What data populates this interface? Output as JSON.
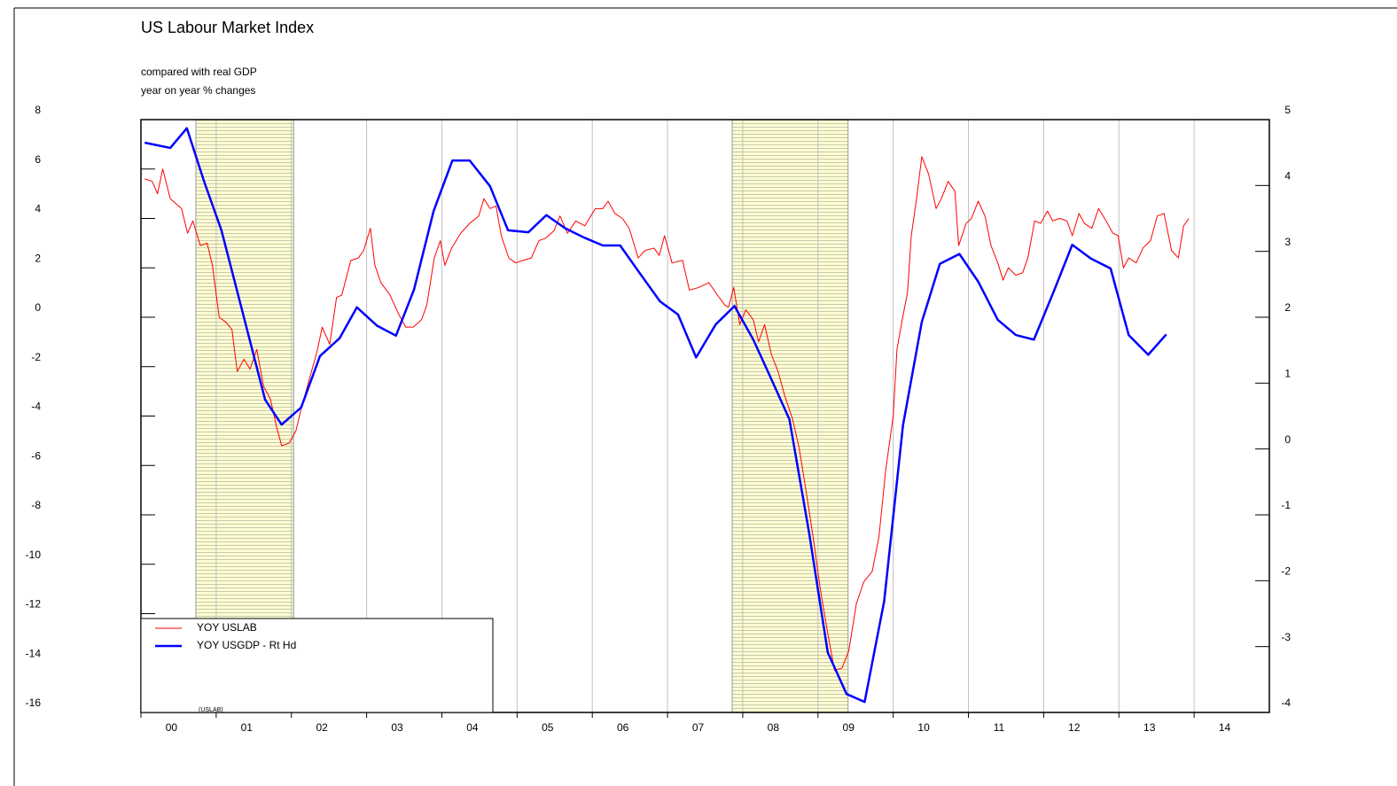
{
  "chart_data": {
    "type": "line",
    "title": "US Labour Market Index",
    "subtitle": [
      "compared with real GDP",
      "year on year % changes"
    ],
    "annotation": "(USLAB)",
    "xlim": [
      2000,
      2015
    ],
    "xticks": [
      {
        "value": 2000,
        "label": "00"
      },
      {
        "value": 2001,
        "label": "01"
      },
      {
        "value": 2002,
        "label": "02"
      },
      {
        "value": 2003,
        "label": "03"
      },
      {
        "value": 2004,
        "label": "04"
      },
      {
        "value": 2005,
        "label": "05"
      },
      {
        "value": 2006,
        "label": "06"
      },
      {
        "value": 2007,
        "label": "07"
      },
      {
        "value": 2008,
        "label": "08"
      },
      {
        "value": 2009,
        "label": "09"
      },
      {
        "value": 2010,
        "label": "10"
      },
      {
        "value": 2011,
        "label": "11"
      },
      {
        "value": 2012,
        "label": "12"
      },
      {
        "value": 2013,
        "label": "13"
      },
      {
        "value": 2014,
        "label": "14"
      }
    ],
    "ylim": [
      -16,
      8
    ],
    "yticks": [
      8,
      6,
      4,
      2,
      0,
      -2,
      -4,
      -6,
      -8,
      -10,
      -12,
      -14,
      -16
    ],
    "y2lim": [
      -4,
      5
    ],
    "y2ticks": [
      5,
      4,
      3,
      2,
      1,
      0,
      -1,
      -2,
      -3,
      -4
    ],
    "grid": true,
    "legend": "bottom-left",
    "shaded_regions": [
      [
        2000.73,
        2002.03
      ],
      [
        2007.86,
        2009.4
      ]
    ],
    "series": [
      {
        "name": "YOY USLAB",
        "color": "#ff0000",
        "axis": "y",
        "x": [
          2000.05,
          2000.15,
          2000.22,
          2000.29,
          2000.39,
          2000.54,
          2000.62,
          2000.69,
          2000.79,
          2000.88,
          2000.95,
          2001.04,
          2001.13,
          2001.21,
          2001.28,
          2001.37,
          2001.45,
          2001.54,
          2001.63,
          2001.72,
          2001.8,
          2001.87,
          2001.97,
          2002.06,
          2002.13,
          2002.23,
          2002.34,
          2002.41,
          2002.51,
          2002.6,
          2002.67,
          2002.79,
          2002.89,
          2002.96,
          2003.05,
          2003.11,
          2003.19,
          2003.31,
          2003.43,
          2003.52,
          2003.62,
          2003.73,
          2003.8,
          2003.9,
          2003.98,
          2004.04,
          2004.13,
          2004.25,
          2004.37,
          2004.49,
          2004.56,
          2004.64,
          2004.72,
          2004.79,
          2004.89,
          2004.98,
          2005.08,
          2005.19,
          2005.29,
          2005.38,
          2005.49,
          2005.57,
          2005.67,
          2005.78,
          2005.9,
          2006.04,
          2006.14,
          2006.21,
          2006.3,
          2006.4,
          2006.49,
          2006.61,
          2006.7,
          2006.82,
          2006.89,
          2006.96,
          2007.06,
          2007.2,
          2007.29,
          2007.41,
          2007.55,
          2007.64,
          2007.76,
          2007.81,
          2007.88,
          2007.96,
          2008.04,
          2008.14,
          2008.21,
          2008.29,
          2008.38,
          2008.47,
          2008.56,
          2008.66,
          2008.75,
          2008.85,
          2008.94,
          2009.03,
          2009.13,
          2009.22,
          2009.32,
          2009.41,
          2009.51,
          2009.61,
          2009.72,
          2009.81,
          2009.9,
          2010.0,
          2010.05,
          2010.12,
          2010.19,
          2010.24,
          2010.31,
          2010.38,
          2010.47,
          2010.57,
          2010.64,
          2010.73,
          2010.82,
          2010.87,
          2010.97,
          2011.04,
          2011.13,
          2011.22,
          2011.3,
          2011.39,
          2011.46,
          2011.53,
          2011.63,
          2011.72,
          2011.79,
          2011.88,
          2011.96,
          2012.05,
          2012.12,
          2012.21,
          2012.31,
          2012.38,
          2012.47,
          2012.54,
          2012.64,
          2012.73,
          2012.83,
          2012.92,
          2012.99,
          2013.06,
          2013.13,
          2013.23,
          2013.32,
          2013.42,
          2013.51,
          2013.6,
          2013.7,
          2013.79,
          2013.86,
          2013.93
        ],
        "values": [
          5.6,
          5.5,
          5.0,
          6.0,
          4.8,
          4.4,
          3.4,
          3.9,
          2.9,
          3.0,
          2.1,
          0.0,
          -0.2,
          -0.5,
          -2.2,
          -1.7,
          -2.1,
          -1.3,
          -2.8,
          -3.3,
          -4.4,
          -5.2,
          -5.1,
          -4.6,
          -3.7,
          -2.6,
          -1.4,
          -0.4,
          -1.1,
          0.8,
          0.9,
          2.3,
          2.4,
          2.7,
          3.6,
          2.1,
          1.4,
          0.9,
          0.1,
          -0.4,
          -0.4,
          -0.1,
          0.5,
          2.4,
          3.1,
          2.1,
          2.8,
          3.4,
          3.8,
          4.1,
          4.8,
          4.4,
          4.5,
          3.3,
          2.4,
          2.2,
          2.3,
          2.4,
          3.1,
          3.2,
          3.5,
          4.1,
          3.4,
          3.9,
          3.7,
          4.4,
          4.4,
          4.7,
          4.2,
          4.0,
          3.6,
          2.4,
          2.7,
          2.8,
          2.5,
          3.3,
          2.2,
          2.3,
          1.1,
          1.2,
          1.4,
          1.0,
          0.5,
          0.4,
          1.2,
          -0.3,
          0.3,
          -0.1,
          -1.0,
          -0.3,
          -1.5,
          -2.2,
          -3.2,
          -4.1,
          -5.3,
          -7.2,
          -9.0,
          -11.0,
          -12.8,
          -14.3,
          -14.2,
          -13.5,
          -11.6,
          -10.7,
          -10.3,
          -8.9,
          -6.2,
          -4.0,
          -1.3,
          -0.1,
          1.0,
          3.3,
          4.8,
          6.5,
          5.8,
          4.4,
          4.8,
          5.5,
          5.1,
          2.9,
          3.8,
          4.0,
          4.7,
          4.1,
          2.9,
          2.2,
          1.5,
          2.0,
          1.7,
          1.8,
          2.4,
          3.9,
          3.8,
          4.3,
          3.9,
          4.0,
          3.9,
          3.3,
          4.2,
          3.8,
          3.6,
          4.4,
          3.9,
          3.4,
          3.3,
          2.0,
          2.4,
          2.2,
          2.8,
          3.1,
          4.1,
          4.2,
          2.7,
          2.4,
          3.7,
          4.0
        ]
      },
      {
        "name": "YOY USGDP - Rt Hd",
        "color": "#0000ff",
        "axis": "y2",
        "x": [
          2000.05,
          2000.39,
          2000.61,
          2000.84,
          2001.07,
          2001.33,
          2001.65,
          2001.87,
          2002.13,
          2002.38,
          2002.64,
          2002.87,
          2003.14,
          2003.39,
          2003.63,
          2003.89,
          2004.14,
          2004.37,
          2004.64,
          2004.88,
          2005.15,
          2005.39,
          2005.64,
          2005.89,
          2006.14,
          2006.37,
          2006.63,
          2006.9,
          2007.14,
          2007.38,
          2007.64,
          2007.89,
          2008.14,
          2008.38,
          2008.62,
          2008.88,
          2009.13,
          2009.38,
          2009.62,
          2009.88,
          2010.13,
          2010.38,
          2010.62,
          2010.88,
          2011.13,
          2011.39,
          2011.63,
          2011.87,
          2012.13,
          2012.38,
          2012.63,
          2012.89,
          2013.13,
          2013.39,
          2013.63
        ],
        "values": [
          4.65,
          4.57,
          4.87,
          4.06,
          3.32,
          2.17,
          0.75,
          0.37,
          0.63,
          1.41,
          1.68,
          2.15,
          1.87,
          1.72,
          2.42,
          3.61,
          4.38,
          4.38,
          3.99,
          3.32,
          3.29,
          3.55,
          3.35,
          3.21,
          3.09,
          3.09,
          2.67,
          2.24,
          2.04,
          1.39,
          1.89,
          2.17,
          1.66,
          1.06,
          0.45,
          -1.26,
          -3.09,
          -3.72,
          -3.84,
          -2.31,
          0.36,
          1.93,
          2.81,
          2.96,
          2.54,
          1.96,
          1.73,
          1.66,
          2.38,
          3.1,
          2.89,
          2.74,
          1.73,
          1.43,
          1.74
        ]
      }
    ]
  }
}
